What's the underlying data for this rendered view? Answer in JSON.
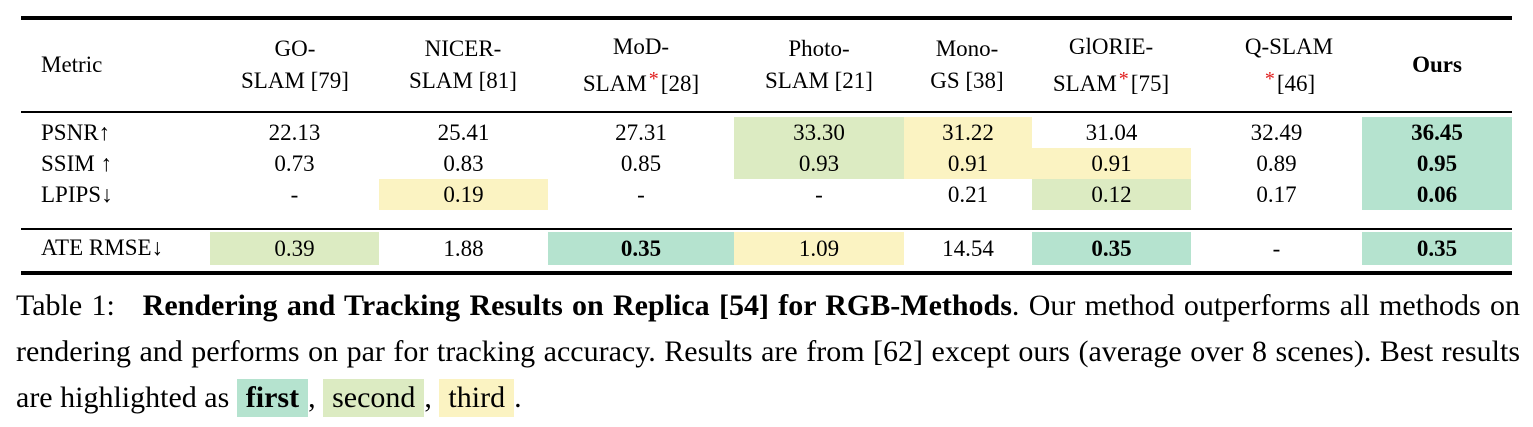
{
  "table": {
    "header": {
      "metric": "Metric",
      "columns": [
        {
          "line1": "GO-",
          "line2": "SLAM [79]",
          "star": false
        },
        {
          "line1": "NICER-",
          "line2": "SLAM [81]",
          "star": false
        },
        {
          "line1": "MoD-",
          "line2": "SLAM",
          "star": true,
          "ref": "[28]"
        },
        {
          "line1": "Photo-",
          "line2": "SLAM [21]",
          "star": false
        },
        {
          "line1": "Mono-",
          "line2": "GS [38]",
          "star": false
        },
        {
          "line1": "GlORIE-",
          "line2": "SLAM",
          "star": true,
          "ref": "[75]"
        },
        {
          "line1": "Q-SLAM",
          "line2": "[46]",
          "star": true,
          "star_before": true
        },
        {
          "line1": "Ours",
          "line2": "",
          "star": false
        }
      ],
      "star_glyph": "*"
    },
    "rows": [
      {
        "label": "PSNR↑",
        "values": [
          "22.13",
          "25.41",
          "27.31",
          "33.30",
          "31.22",
          "31.04",
          "32.49",
          "36.45"
        ],
        "highlight": [
          "",
          "",
          "",
          "second",
          "third",
          "",
          "",
          "first"
        ]
      },
      {
        "label": "SSIM ↑",
        "values": [
          "0.73",
          "0.83",
          "0.85",
          "0.93",
          "0.91",
          "0.91",
          "0.89",
          "0.95"
        ],
        "highlight": [
          "",
          "",
          "",
          "second",
          "third",
          "third",
          "",
          "first"
        ]
      },
      {
        "label": "LPIPS↓",
        "values": [
          "-",
          "0.19",
          "-",
          "-",
          "0.21",
          "0.12",
          "0.17",
          "0.06"
        ],
        "highlight": [
          "",
          "third",
          "",
          "",
          "",
          "second",
          "",
          "first"
        ]
      },
      {
        "label": "ATE RMSE↓",
        "values": [
          "0.39",
          "1.88",
          "0.35",
          "1.09",
          "14.54",
          "0.35",
          "-",
          "0.35"
        ],
        "highlight": [
          "second",
          "",
          "first",
          "third",
          "",
          "first",
          "",
          "first"
        ]
      }
    ],
    "colors": {
      "first": "#b5e3cf",
      "second": "#dcebc2",
      "third": "#fbf3c2"
    }
  },
  "caption": {
    "prefix": "Table 1:",
    "bold_title": "Rendering and Tracking Results on Replica [54] for RGB-Methods",
    "text1": ". Our method outperforms all methods on rendering and performs on par for tracking accuracy. Results are from [62] except ours (average over 8 scenes). Best results are highlighted as",
    "first": "first",
    "second": "second",
    "third": "third",
    "sep": ",",
    "end": "."
  }
}
